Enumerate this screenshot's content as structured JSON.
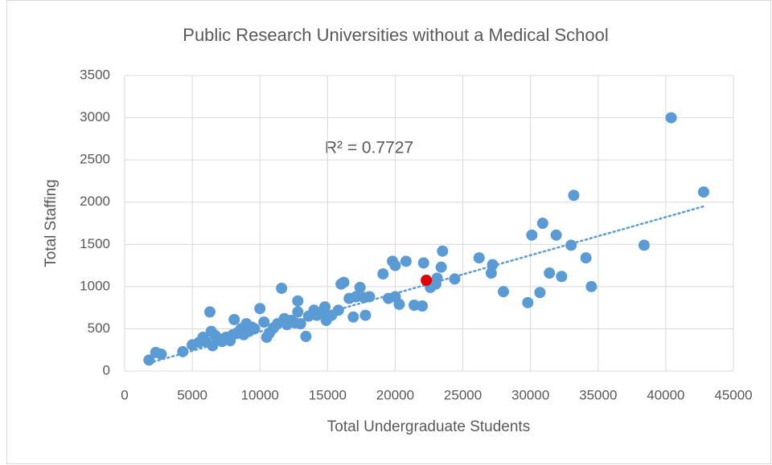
{
  "chart_data": {
    "type": "scatter",
    "title": "Public Research Universities without a Medical School",
    "x_label": "Total Undergraduate Students",
    "y_label": "Total Staffing",
    "annotation": "R² = 0.7727",
    "xlim": [
      0,
      45000
    ],
    "xticks": [
      0,
      5000,
      10000,
      15000,
      20000,
      25000,
      30000,
      35000,
      40000,
      45000
    ],
    "ylim": [
      0,
      3500
    ],
    "yticks": [
      0,
      500,
      1000,
      1500,
      2000,
      2500,
      3000,
      3500
    ],
    "grid": true,
    "series": [
      {
        "color": "#5b9bd5",
        "x": [
          1800,
          2300,
          2700,
          4300,
          5000,
          5500,
          5800,
          6000,
          6300,
          6400,
          6500,
          6700,
          7000,
          7200,
          7500,
          7800,
          8000,
          8100,
          8300,
          8600,
          8800,
          9000,
          9200,
          9400,
          9600,
          10000,
          10300,
          10500,
          10700,
          11000,
          11300,
          11600,
          11800,
          12000,
          12300,
          12600,
          12800,
          12800,
          13000,
          13400,
          13600,
          14000,
          14200,
          14600,
          14800,
          14900,
          15300,
          15800,
          16000,
          16200,
          16600,
          16900,
          17100,
          17400,
          17700,
          17800,
          18100,
          19100,
          19500,
          19800,
          20000,
          20000,
          20300,
          20800,
          21400,
          22000,
          22100,
          22600,
          23000,
          23100,
          23400,
          23500,
          24400,
          26200,
          27100,
          27200,
          28000,
          29800,
          30100,
          30700,
          30900,
          31400,
          31900,
          32300,
          33000,
          33200,
          34100,
          34500,
          38400,
          40400,
          42800
        ],
        "values": [
          130,
          220,
          200,
          230,
          310,
          340,
          400,
          350,
          700,
          470,
          300,
          420,
          380,
          350,
          400,
          360,
          430,
          610,
          450,
          500,
          430,
          560,
          470,
          520,
          500,
          740,
          580,
          400,
          450,
          510,
          560,
          980,
          620,
          550,
          600,
          570,
          830,
          700,
          560,
          410,
          650,
          720,
          660,
          700,
          760,
          600,
          660,
          720,
          1030,
          1050,
          860,
          640,
          880,
          990,
          870,
          660,
          880,
          1150,
          860,
          1300,
          1250,
          880,
          790,
          1300,
          780,
          770,
          1280,
          990,
          1030,
          1100,
          1230,
          1420,
          1090,
          1340,
          1160,
          1260,
          940,
          810,
          1610,
          930,
          1750,
          1160,
          1610,
          1120,
          1490,
          2080,
          1340,
          1000,
          1490,
          3000,
          2120
        ]
      },
      {
        "color": "#e00000",
        "x": [
          22300
        ],
        "values": [
          1075
        ]
      }
    ],
    "trendline": {
      "color": "#5b9bd5",
      "x": [
        1800,
        42800
      ],
      "values": [
        95,
        1950
      ]
    }
  }
}
